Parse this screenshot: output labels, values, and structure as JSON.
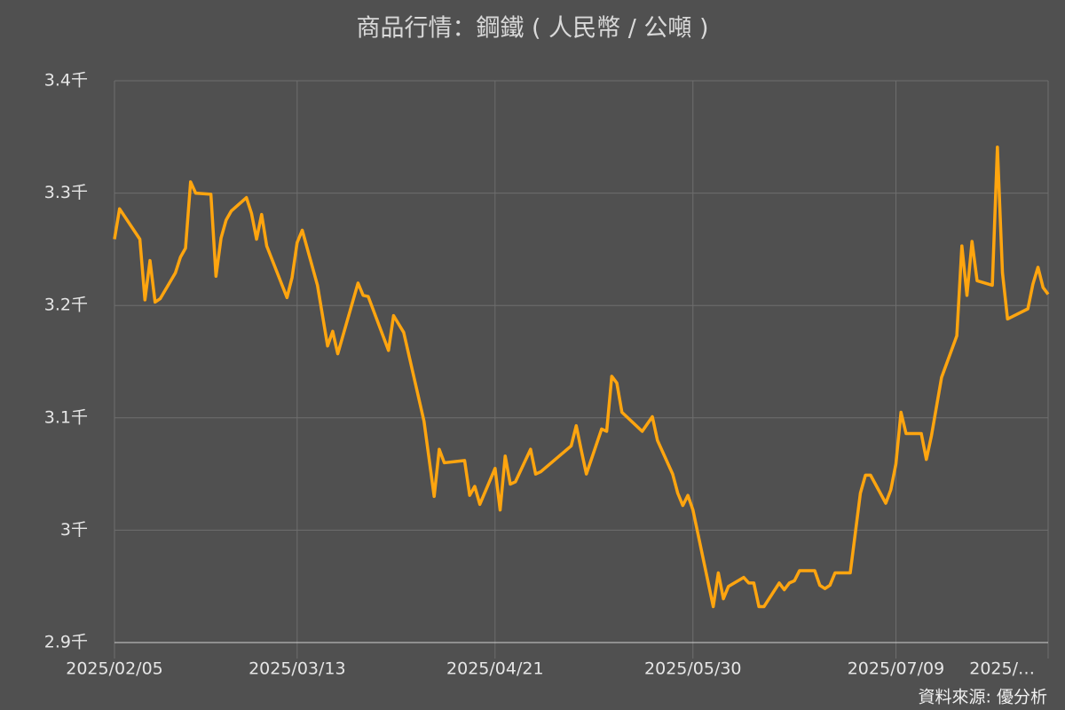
{
  "chart_data": {
    "type": "line",
    "title": "商品行情：鋼鐵 ( 人民幣 / 公噸 )",
    "source": "資料來源: 優分析",
    "color": "#ffa50f",
    "grid": true,
    "x": [
      "2025/02/05",
      "2025/02/06",
      "2025/02/10",
      "2025/02/11",
      "2025/02/12",
      "2025/02/13",
      "2025/02/14",
      "2025/02/17",
      "2025/02/18",
      "2025/02/19",
      "2025/02/20",
      "2025/02/21",
      "2025/02/24",
      "2025/02/25",
      "2025/02/26",
      "2025/02/27",
      "2025/02/28",
      "2025/03/03",
      "2025/03/04",
      "2025/03/05",
      "2025/03/06",
      "2025/03/07",
      "2025/03/11",
      "2025/03/12",
      "2025/03/13",
      "2025/03/14",
      "2025/03/17",
      "2025/03/19",
      "2025/03/20",
      "2025/03/21",
      "2025/03/25",
      "2025/03/26",
      "2025/03/27",
      "2025/03/31",
      "2025/04/01",
      "2025/04/03",
      "2025/04/07",
      "2025/04/09",
      "2025/04/10",
      "2025/04/11",
      "2025/04/15",
      "2025/04/16",
      "2025/04/17",
      "2025/04/18",
      "2025/04/21",
      "2025/04/22",
      "2025/04/23",
      "2025/04/24",
      "2025/04/25",
      "2025/04/28",
      "2025/04/29",
      "2025/04/30",
      "2025/05/06",
      "2025/05/07",
      "2025/05/08",
      "2025/05/09",
      "2025/05/12",
      "2025/05/13",
      "2025/05/14",
      "2025/05/15",
      "2025/05/16",
      "2025/05/20",
      "2025/05/22",
      "2025/05/23",
      "2025/05/26",
      "2025/05/27",
      "2025/05/28",
      "2025/05/29",
      "2025/05/30",
      "2025/06/03",
      "2025/06/04",
      "2025/06/05",
      "2025/06/06",
      "2025/06/09",
      "2025/06/10",
      "2025/06/11",
      "2025/06/12",
      "2025/06/13",
      "2025/06/16",
      "2025/06/17",
      "2025/06/18",
      "2025/06/19",
      "2025/06/20",
      "2025/06/23",
      "2025/06/24",
      "2025/06/25",
      "2025/06/26",
      "2025/06/27",
      "2025/06/30",
      "2025/07/02",
      "2025/07/03",
      "2025/07/04",
      "2025/07/07",
      "2025/07/08",
      "2025/07/09",
      "2025/07/10",
      "2025/07/11",
      "2025/07/14",
      "2025/07/15",
      "2025/07/16",
      "2025/07/18",
      "2025/07/21",
      "2025/07/22",
      "2025/07/23",
      "2025/07/24",
      "2025/07/25",
      "2025/07/28",
      "2025/07/29",
      "2025/07/30",
      "2025/07/31",
      "2025/08/04",
      "2025/08/05",
      "2025/08/06",
      "2025/08/07",
      "2025/08/08"
    ],
    "values": [
      3259,
      3286,
      3259,
      3205,
      3240,
      3203,
      3206,
      3229,
      3243,
      3251,
      3310,
      3300,
      3299,
      3226,
      3260,
      3276,
      3284,
      3296,
      3282,
      3259,
      3281,
      3253,
      3207,
      3225,
      3256,
      3267,
      3218,
      3164,
      3177,
      3157,
      3220,
      3209,
      3208,
      3160,
      3191,
      3176,
      3097,
      3030,
      3072,
      3060,
      3062,
      3031,
      3039,
      3023,
      3055,
      3018,
      3066,
      3041,
      3043,
      3072,
      3050,
      3052,
      3075,
      3093,
      3071,
      3050,
      3090,
      3088,
      3137,
      3131,
      3105,
      3088,
      3101,
      3080,
      3050,
      3033,
      3022,
      3031,
      3018,
      2932,
      2962,
      2939,
      2950,
      2958,
      2953,
      2953,
      2932,
      2932,
      2953,
      2947,
      2953,
      2955,
      2964,
      2964,
      2951,
      2948,
      2951,
      2962,
      2962,
      3033,
      3049,
      3049,
      3024,
      3036,
      3059,
      3105,
      3086,
      3086,
      3063,
      3084,
      3136,
      3173,
      3253,
      3209,
      3257,
      3222,
      3218,
      3341,
      3229,
      3188,
      3197,
      3219,
      3234,
      3216,
      3210
    ],
    "xlim": [
      "2025/02/05",
      "2025/08/08"
    ],
    "xticks": [
      "2025/02/05",
      "2025/03/13",
      "2025/04/21",
      "2025/05/30",
      "2025/07/09",
      {
        "value": "2025/08/08",
        "label": "2025/…"
      }
    ],
    "ylim": [
      2900,
      3400
    ],
    "yticks": [
      {
        "value": 2900,
        "label": "2.9千"
      },
      {
        "value": 3000,
        "label": "3千"
      },
      {
        "value": 3100,
        "label": "3.1千"
      },
      {
        "value": 3200,
        "label": "3.2千"
      },
      {
        "value": 3300,
        "label": "3.3千"
      },
      {
        "value": 3400,
        "label": "3.4千"
      }
    ]
  }
}
